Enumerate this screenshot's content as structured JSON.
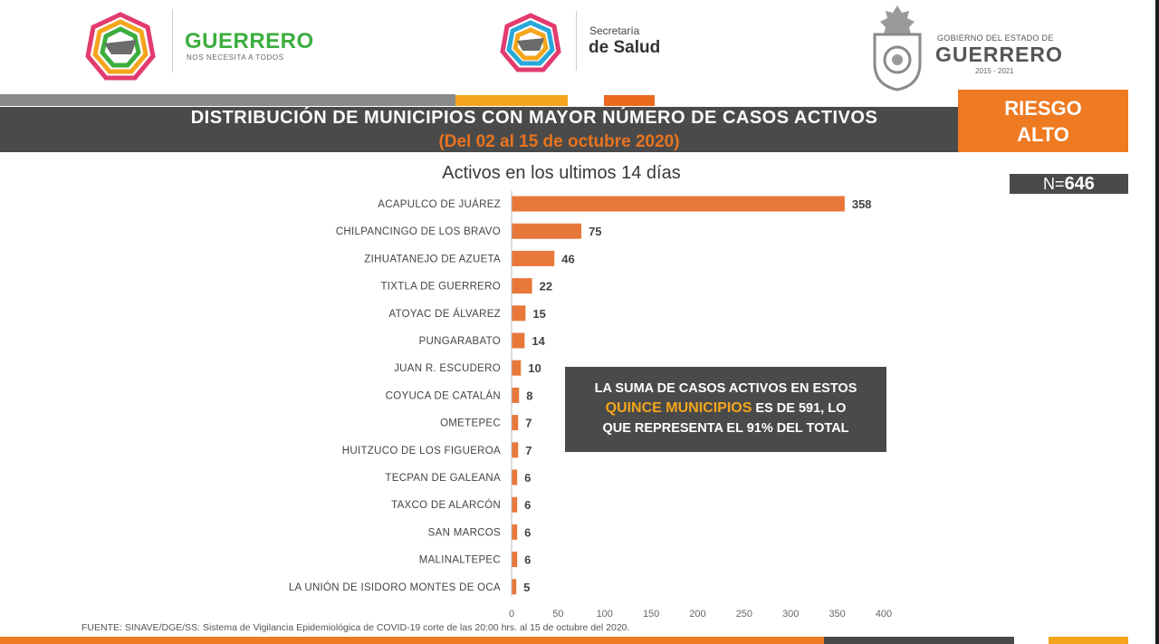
{
  "header": {
    "brand_name": "GUERRERO",
    "brand_tagline": "NOS NECESITA A TODOS",
    "secretaria_line1": "Secretaría",
    "secretaria_line2": "de Salud",
    "gobierno_line1": "GOBIERNO DEL ESTADO DE",
    "gobierno_line2": "GUERRERO",
    "gobierno_years": "2015 - 2021"
  },
  "title": {
    "main": "DISTRIBUCIÓN DE MUNICIPIOS CON MAYOR NÚMERO DE  CASOS ACTIVOS",
    "dates": "(Del 02 al 15 de octubre 2020)",
    "risk_line1": "RIESGO",
    "risk_line2": "ALTO",
    "n_prefix": "N=",
    "n_value": "646"
  },
  "callout": {
    "line1": "LA SUMA DE CASOS ACTIVOS EN ESTOS",
    "line2_highlight": "QUINCE MUNICIPIOS",
    "line2_rest": " ES DE 591, LO",
    "line3": "QUE REPRESENTA EL 91% DEL TOTAL"
  },
  "source": "FUENTE: SINAVE/DGE/SS: Sistema de Vigilancia Epidemiológica de COVID-19 corte de las 20:00 hrs. al 15 de octubre del 2020.",
  "colors": {
    "bar": "#e8773a",
    "accent_orange": "#ee7a22",
    "accent_yellow": "#f4a51c",
    "dark_grey": "#4a4a4a"
  },
  "chart_data": {
    "type": "bar",
    "orientation": "horizontal",
    "title": "Activos en los ultimos 14 días",
    "categories": [
      "ACAPULCO DE JUÁREZ",
      "CHILPANCINGO DE LOS BRAVO",
      "ZIHUATANEJO DE AZUETA",
      "TIXTLA DE GUERRERO",
      "ATOYAC DE ÁLVAREZ",
      "PUNGARABATO",
      "JUAN R. ESCUDERO",
      "COYUCA DE CATALÁN",
      "OMETEPEC",
      "HUITZUCO DE LOS FIGUEROA",
      "TECPAN DE GALEANA",
      "TAXCO DE ALARCÓN",
      "SAN MARCOS",
      "MALINALTEPEC",
      "LA UNIÓN DE ISIDORO MONTES DE OCA"
    ],
    "values": [
      358,
      75,
      46,
      22,
      15,
      14,
      10,
      8,
      7,
      7,
      6,
      6,
      6,
      6,
      5
    ],
    "xlim": [
      0,
      400
    ],
    "xticks": [
      0,
      50,
      100,
      150,
      200,
      250,
      300,
      350,
      400
    ],
    "grid": false,
    "data_labels": true
  }
}
